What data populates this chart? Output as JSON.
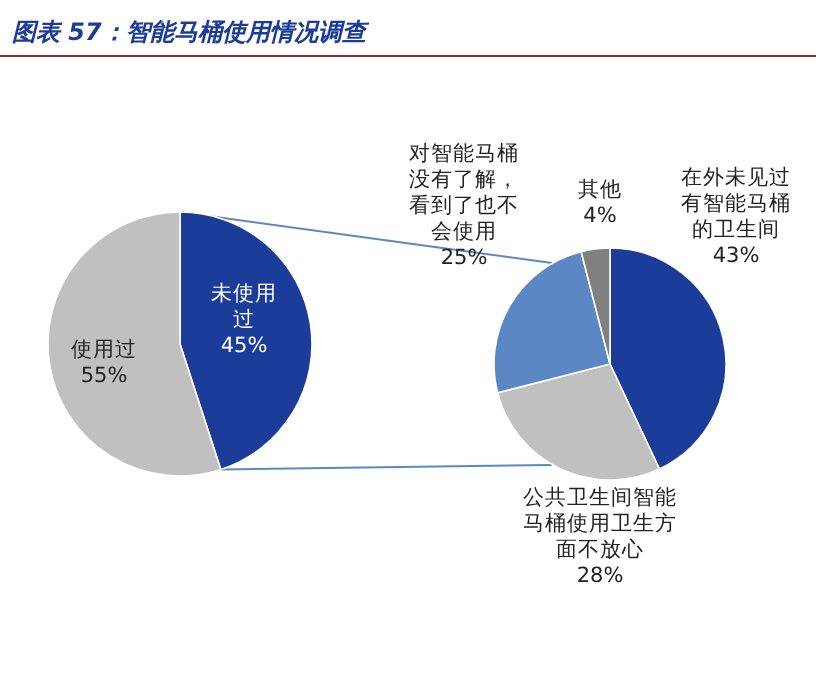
{
  "chart_data": [
    {
      "type": "pie",
      "title": "图表 57：智能马桶使用情况调查",
      "categories": [
        "未使用过",
        "使用过"
      ],
      "values": [
        45,
        55
      ],
      "value_labels": [
        "45%",
        "55%"
      ],
      "colors": [
        "#1c3c99",
        "#c0c0c0"
      ]
    },
    {
      "type": "pie",
      "categories": [
        "在外未见过有智能马桶的卫生间",
        "公共卫生间智能马桶使用卫生方面不放心",
        "对智能马桶没有了解，看到了也不会使用",
        "其他"
      ],
      "values": [
        43,
        28,
        25,
        4
      ],
      "value_labels": [
        "43%",
        "28%",
        "25%",
        "4%"
      ],
      "colors": [
        "#1c3c99",
        "#c0c0c0",
        "#5b87c5",
        "#808080"
      ]
    }
  ]
}
